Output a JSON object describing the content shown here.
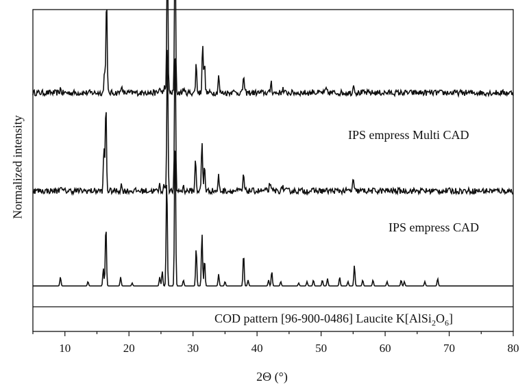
{
  "chart_data": {
    "type": "line",
    "xlabel": "2Θ (°)",
    "ylabel": "Normalized intensity",
    "xlim": [
      5,
      80
    ],
    "xticks": [
      10,
      20,
      30,
      40,
      50,
      60,
      70,
      80
    ],
    "grid": false,
    "series": [
      {
        "name": "IPS empress Multi CAD",
        "label_parts": [
          "IPS empress Multi CAD"
        ],
        "baseline": 0.72,
        "noise": 0.01,
        "peaks": [
          [
            9.3,
            0.015
          ],
          [
            16.2,
            0.08
          ],
          [
            16.5,
            0.33
          ],
          [
            18.8,
            0.025
          ],
          [
            22.5,
            0.01
          ],
          [
            24.8,
            0.02
          ],
          [
            25.5,
            0.02
          ],
          [
            26.0,
            0.52
          ],
          [
            27.2,
            0.54
          ],
          [
            28.5,
            0.015
          ],
          [
            30.5,
            0.1
          ],
          [
            31.5,
            0.17
          ],
          [
            31.8,
            0.1
          ],
          [
            34.0,
            0.06
          ],
          [
            36.2,
            0.015
          ],
          [
            37.9,
            0.06
          ],
          [
            42.2,
            0.04
          ],
          [
            44.0,
            0.015
          ],
          [
            48.8,
            0.01
          ],
          [
            50.8,
            0.015
          ],
          [
            55.1,
            0.035
          ]
        ]
      },
      {
        "name": "IPS empress CAD",
        "label_parts": [
          "IPS empress CAD"
        ],
        "baseline": 0.39,
        "noise": 0.01,
        "peaks": [
          [
            9.3,
            0.02
          ],
          [
            16.1,
            0.15
          ],
          [
            16.4,
            0.3
          ],
          [
            18.8,
            0.02
          ],
          [
            24.8,
            0.02
          ],
          [
            25.5,
            0.02
          ],
          [
            26.0,
            0.5
          ],
          [
            27.2,
            0.52
          ],
          [
            28.5,
            0.015
          ],
          [
            30.4,
            0.11
          ],
          [
            31.4,
            0.17
          ],
          [
            31.8,
            0.09
          ],
          [
            34.0,
            0.05
          ],
          [
            37.9,
            0.055
          ],
          [
            42.0,
            0.03
          ],
          [
            44.0,
            0.02
          ],
          [
            55.0,
            0.04
          ]
        ]
      },
      {
        "name": "COD pattern [96-900-0486] Laucite K[AlSi2O6]",
        "label_parts": [
          "COD pattern [96-900-0486] Laucite K[AlSi",
          "2",
          "O",
          "6",
          "]"
        ],
        "baseline": 0.07,
        "noise": 0.0,
        "peaks": [
          [
            9.3,
            0.03
          ],
          [
            13.6,
            0.015
          ],
          [
            16.0,
            0.06
          ],
          [
            16.4,
            0.21
          ],
          [
            18.7,
            0.03
          ],
          [
            20.5,
            0.01
          ],
          [
            24.8,
            0.03
          ],
          [
            25.2,
            0.05
          ],
          [
            25.9,
            0.37
          ],
          [
            27.2,
            0.54
          ],
          [
            28.5,
            0.02
          ],
          [
            30.5,
            0.13
          ],
          [
            31.4,
            0.18
          ],
          [
            31.8,
            0.09
          ],
          [
            34.0,
            0.04
          ],
          [
            35.0,
            0.015
          ],
          [
            37.9,
            0.11
          ],
          [
            38.6,
            0.02
          ],
          [
            41.8,
            0.02
          ],
          [
            42.3,
            0.05
          ],
          [
            43.7,
            0.015
          ],
          [
            46.5,
            0.01
          ],
          [
            47.8,
            0.015
          ],
          [
            48.8,
            0.02
          ],
          [
            50.2,
            0.02
          ],
          [
            51.0,
            0.025
          ],
          [
            52.9,
            0.03
          ],
          [
            54.2,
            0.015
          ],
          [
            55.2,
            0.07
          ],
          [
            56.5,
            0.02
          ],
          [
            58.1,
            0.02
          ],
          [
            60.3,
            0.015
          ],
          [
            62.5,
            0.02
          ],
          [
            63.0,
            0.015
          ],
          [
            66.2,
            0.015
          ],
          [
            68.2,
            0.025
          ]
        ]
      }
    ]
  }
}
